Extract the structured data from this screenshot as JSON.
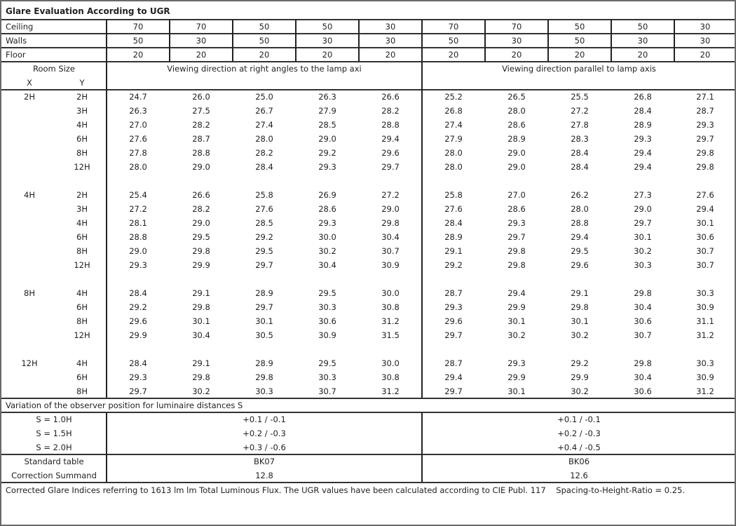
{
  "title": "Glare Evaluation According to UGR",
  "reflectances": [
    {
      "label": "Ceiling",
      "values": [
        "70",
        "70",
        "50",
        "50",
        "30",
        "70",
        "70",
        "50",
        "50",
        "30"
      ]
    },
    {
      "label": "Walls",
      "values": [
        "50",
        "30",
        "50",
        "30",
        "30",
        "50",
        "30",
        "50",
        "30",
        "30"
      ]
    },
    {
      "label": "Floor",
      "values": [
        "20",
        "20",
        "20",
        "20",
        "20",
        "20",
        "20",
        "20",
        "20",
        "20"
      ]
    }
  ],
  "room_size": {
    "label": "Room Size",
    "x_label": "X",
    "y_label": "Y"
  },
  "directions": [
    "Viewing direction at right angles to the lamp axi",
    "Viewing direction parallel to lamp axis"
  ],
  "groups": [
    {
      "x": "2H",
      "rows": [
        {
          "y": "2H",
          "perp": [
            "24.7",
            "26.0",
            "25.0",
            "26.3",
            "26.6"
          ],
          "para": [
            "25.2",
            "26.5",
            "25.5",
            "26.8",
            "27.1"
          ]
        },
        {
          "y": "3H",
          "perp": [
            "26.3",
            "27.5",
            "26.7",
            "27.9",
            "28.2"
          ],
          "para": [
            "26.8",
            "28.0",
            "27.2",
            "28.4",
            "28.7"
          ]
        },
        {
          "y": "4H",
          "perp": [
            "27.0",
            "28.2",
            "27.4",
            "28.5",
            "28.8"
          ],
          "para": [
            "27.4",
            "28.6",
            "27.8",
            "28.9",
            "29.3"
          ]
        },
        {
          "y": "6H",
          "perp": [
            "27.6",
            "28.7",
            "28.0",
            "29.0",
            "29.4"
          ],
          "para": [
            "27.9",
            "28.9",
            "28.3",
            "29.3",
            "29.7"
          ]
        },
        {
          "y": "8H",
          "perp": [
            "27.8",
            "28.8",
            "28.2",
            "29.2",
            "29.6"
          ],
          "para": [
            "28.0",
            "29.0",
            "28.4",
            "29.4",
            "29.8"
          ]
        },
        {
          "y": "12H",
          "perp": [
            "28.0",
            "29.0",
            "28.4",
            "29.3",
            "29.7"
          ],
          "para": [
            "28.0",
            "29.0",
            "28.4",
            "29.4",
            "29.8"
          ]
        }
      ]
    },
    {
      "x": "4H",
      "rows": [
        {
          "y": "2H",
          "perp": [
            "25.4",
            "26.6",
            "25.8",
            "26.9",
            "27.2"
          ],
          "para": [
            "25.8",
            "27.0",
            "26.2",
            "27.3",
            "27.6"
          ]
        },
        {
          "y": "3H",
          "perp": [
            "27.2",
            "28.2",
            "27.6",
            "28.6",
            "29.0"
          ],
          "para": [
            "27.6",
            "28.6",
            "28.0",
            "29.0",
            "29.4"
          ]
        },
        {
          "y": "4H",
          "perp": [
            "28.1",
            "29.0",
            "28.5",
            "29.3",
            "29.8"
          ],
          "para": [
            "28.4",
            "29.3",
            "28.8",
            "29.7",
            "30.1"
          ]
        },
        {
          "y": "6H",
          "perp": [
            "28.8",
            "29.5",
            "29.2",
            "30.0",
            "30.4"
          ],
          "para": [
            "28.9",
            "29.7",
            "29.4",
            "30.1",
            "30.6"
          ]
        },
        {
          "y": "8H",
          "perp": [
            "29.0",
            "29.8",
            "29.5",
            "30.2",
            "30.7"
          ],
          "para": [
            "29.1",
            "29.8",
            "29.5",
            "30.2",
            "30.7"
          ]
        },
        {
          "y": "12H",
          "perp": [
            "29.3",
            "29.9",
            "29.7",
            "30.4",
            "30.9"
          ],
          "para": [
            "29.2",
            "29.8",
            "29.6",
            "30.3",
            "30.7"
          ]
        }
      ]
    },
    {
      "x": "8H",
      "rows": [
        {
          "y": "4H",
          "perp": [
            "28.4",
            "29.1",
            "28.9",
            "29.5",
            "30.0"
          ],
          "para": [
            "28.7",
            "29.4",
            "29.1",
            "29.8",
            "30.3"
          ]
        },
        {
          "y": "6H",
          "perp": [
            "29.2",
            "29.8",
            "29.7",
            "30.3",
            "30.8"
          ],
          "para": [
            "29.3",
            "29.9",
            "29.8",
            "30.4",
            "30.9"
          ]
        },
        {
          "y": "8H",
          "perp": [
            "29.6",
            "30.1",
            "30.1",
            "30.6",
            "31.2"
          ],
          "para": [
            "29.6",
            "30.1",
            "30.1",
            "30.6",
            "31.1"
          ]
        },
        {
          "y": "12H",
          "perp": [
            "29.9",
            "30.4",
            "30.5",
            "30.9",
            "31.5"
          ],
          "para": [
            "29.7",
            "30.2",
            "30.2",
            "30.7",
            "31.2"
          ]
        }
      ]
    },
    {
      "x": "12H",
      "rows": [
        {
          "y": "4H",
          "perp": [
            "28.4",
            "29.1",
            "28.9",
            "29.5",
            "30.0"
          ],
          "para": [
            "28.7",
            "29.3",
            "29.2",
            "29.8",
            "30.3"
          ]
        },
        {
          "y": "6H",
          "perp": [
            "29.3",
            "29.8",
            "29.8",
            "30.3",
            "30.8"
          ],
          "para": [
            "29.4",
            "29.9",
            "29.9",
            "30.4",
            "30.9"
          ]
        },
        {
          "y": "8H",
          "perp": [
            "29.7",
            "30.2",
            "30.3",
            "30.7",
            "31.2"
          ],
          "para": [
            "29.7",
            "30.1",
            "30.2",
            "30.6",
            "31.2"
          ]
        }
      ]
    }
  ],
  "variation": {
    "title": "Variation of the observer position for luminaire distances S",
    "rows": [
      {
        "label": "S = 1.0H",
        "perp": "+0.1 / -0.1",
        "para": "+0.1 / -0.1"
      },
      {
        "label": "S = 1.5H",
        "perp": "+0.2 / -0.3",
        "para": "+0.2 / -0.3"
      },
      {
        "label": "S = 2.0H",
        "perp": "+0.3 / -0.6",
        "para": "+0.4 / -0.5"
      }
    ]
  },
  "summary": [
    {
      "label": "Standard table",
      "perp": "BK07",
      "para": "BK06"
    },
    {
      "label": "Correction Summand",
      "perp": "12.8",
      "para": "12.6"
    }
  ],
  "footnote": "Corrected Glare Indices referring to 1613 lm lm Total Luminous Flux. The UGR values have been calculated according to CIE Publ. 117    Spacing-to-Height-Ratio = 0.25."
}
